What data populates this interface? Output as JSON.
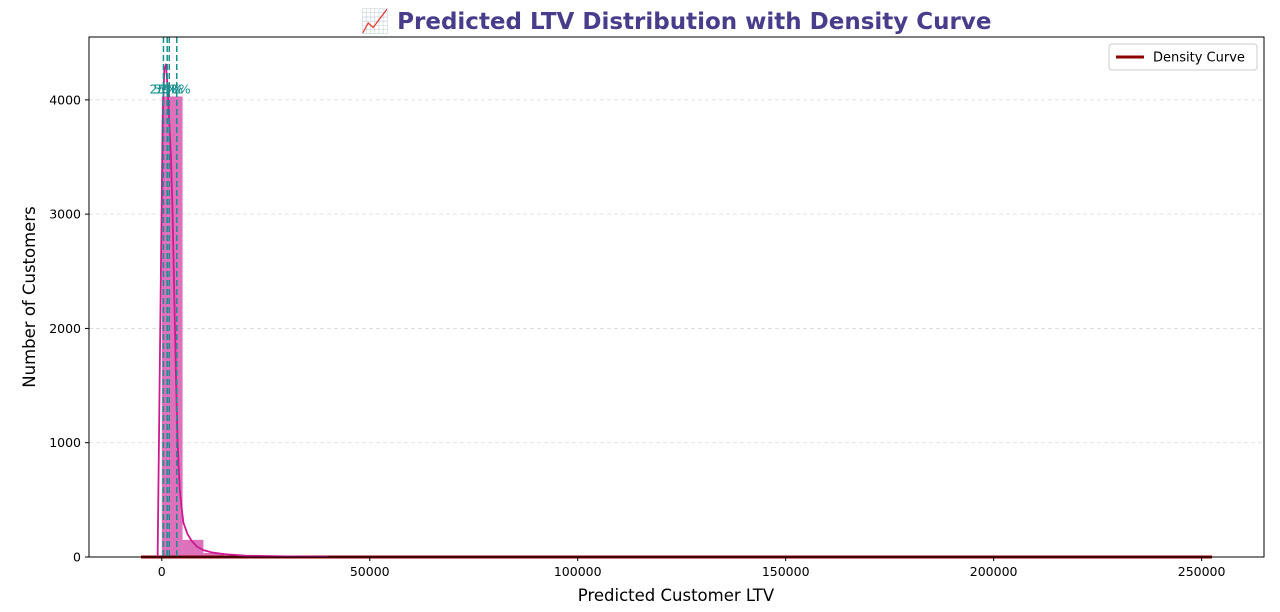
{
  "chart_data": {
    "type": "bar",
    "title": "📈 Predicted LTV Distribution with Density Curve",
    "xlabel": "Predicted Customer LTV",
    "ylabel": "Number of Customers",
    "xlim": [
      -17500,
      265000
    ],
    "ylim": [
      0,
      4550
    ],
    "xticks": [
      0,
      50000,
      100000,
      150000,
      200000,
      250000
    ],
    "yticks": [
      0,
      1000,
      2000,
      3000,
      4000
    ],
    "grid": "y-dashed",
    "legend": {
      "position": "top-right",
      "entries": [
        "Density Curve"
      ]
    },
    "bins": [
      {
        "x0": 0,
        "x1": 5000,
        "count": 4030
      },
      {
        "x0": 5000,
        "x1": 10000,
        "count": 150
      },
      {
        "x0": 10000,
        "x1": 15000,
        "count": 35
      },
      {
        "x0": 15000,
        "x1": 20000,
        "count": 15
      },
      {
        "x0": 20000,
        "x1": 25000,
        "count": 8
      },
      {
        "x0": 25000,
        "x1": 30000,
        "count": 5
      },
      {
        "x0": 30000,
        "x1": 35000,
        "count": 3
      },
      {
        "x0": 35000,
        "x1": 40000,
        "count": 2
      }
    ],
    "kde_curve": {
      "x": [
        -1000,
        200,
        600,
        1000,
        1400,
        1800,
        2200,
        2600,
        3000,
        3400,
        3800,
        4300,
        4700,
        5200,
        6200,
        7200,
        8500,
        10000,
        12000,
        15000,
        20000,
        25000,
        30000,
        40000
      ],
      "y": [
        0,
        3800,
        4270,
        4310,
        4100,
        3800,
        3500,
        3000,
        2300,
        1600,
        1000,
        600,
        450,
        300,
        200,
        140,
        90,
        60,
        40,
        25,
        12,
        8,
        5,
        2
      ]
    },
    "density_curve": {
      "name": "Density Curve",
      "x": [
        -5000,
        0,
        50000,
        100000,
        150000,
        200000,
        252500
      ],
      "y": [
        0,
        0,
        0,
        0,
        0,
        0,
        0
      ]
    },
    "percentile_lines": [
      {
        "label": "25%",
        "value": 400
      },
      {
        "label": "50%",
        "value": 1300
      },
      {
        "label": "75%",
        "value": 1800
      },
      {
        "label": "90%",
        "value": 3600
      }
    ],
    "percentile_label_y": 4100,
    "colors": {
      "bars": "#db69b7",
      "kde": "#cc1a8f",
      "density": "#8b0000",
      "percentile": "#178f8f",
      "title": "#483d8b"
    }
  }
}
